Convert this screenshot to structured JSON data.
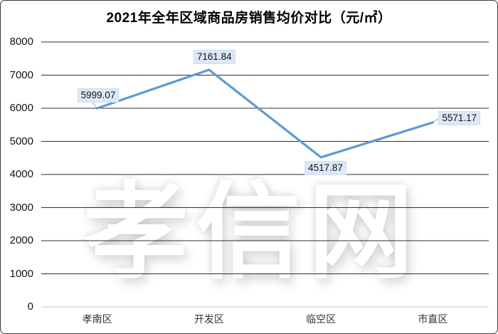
{
  "window": {
    "background": "#ffffff",
    "border_color": "#3c3c3c"
  },
  "watermark": {
    "text": "孝信网"
  },
  "chart_data": {
    "type": "line",
    "title": "2021年全年区域商品房销售均价对比（元/㎡）",
    "categories": [
      "孝南区",
      "开发区",
      "临空区",
      "市直区"
    ],
    "values": [
      5999.07,
      7161.84,
      4517.87,
      5571.17
    ],
    "data_labels": [
      "5999.07",
      "7161.84",
      "4517.87",
      "5571.17"
    ],
    "label_placements": [
      "above-left",
      "above",
      "below",
      "right"
    ],
    "y_ticks": [
      0,
      1000,
      2000,
      3000,
      4000,
      5000,
      6000,
      7000,
      8000
    ],
    "ylim": [
      0,
      8000
    ],
    "xlabel": "",
    "ylabel": "",
    "grid": "horizontal",
    "legend": "none",
    "colors": {
      "line": "#5b9bd5",
      "data_label_bg": "#dce8f5",
      "data_label_border": "#cfdff0",
      "gridline": "#2f2f2f",
      "zero_axis_line": "#c4c4c4",
      "tick_text": "#141414",
      "category_text": "#333333",
      "title_text": "#000000",
      "leader_line": "#9aa7b5"
    }
  }
}
